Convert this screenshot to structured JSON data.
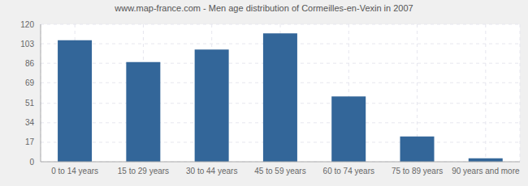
{
  "chart_data": {
    "type": "bar",
    "title": "www.map-france.com - Men age distribution of Cormeilles-en-Vexin in 2007",
    "categories": [
      "0 to 14 years",
      "15 to 29 years",
      "30 to 44 years",
      "45 to 59 years",
      "60 to 74 years",
      "75 to 89 years",
      "90 years and more"
    ],
    "values": [
      106,
      87,
      98,
      112,
      57,
      22,
      3
    ],
    "color": "#336699",
    "ylim": [
      0,
      120
    ],
    "yticks": [
      0,
      17,
      34,
      51,
      69,
      86,
      103,
      120
    ],
    "grid": true
  }
}
